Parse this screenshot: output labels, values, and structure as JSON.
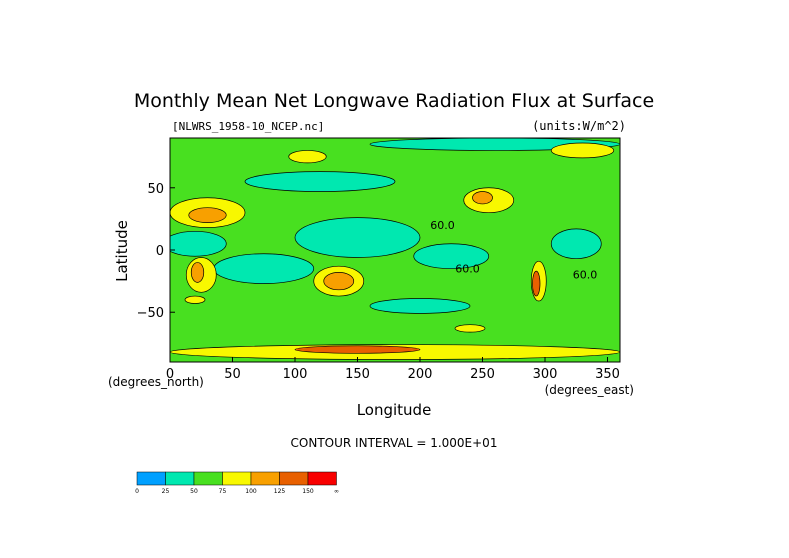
{
  "chart_data": {
    "type": "heatmap",
    "title": "Monthly Mean Net Longwave Radiation Flux at Surface",
    "subtitle_left": "[NLWRS_1958-10_NCEP.nc]",
    "subtitle_right": "(units:W/m^2)",
    "xlabel": "Longitude",
    "ylabel": "Latitude",
    "x_unit_label": "(degrees_east)",
    "y_unit_label": "(degrees_north)",
    "xlim": [
      0,
      360
    ],
    "ylim": [
      -90,
      90
    ],
    "x_ticks": [
      0,
      50,
      100,
      150,
      200,
      250,
      300,
      350
    ],
    "y_ticks": [
      50,
      0,
      -50
    ],
    "x_tick_labels": [
      "0",
      "50",
      "100",
      "150",
      "200",
      "250",
      "300",
      "350"
    ],
    "y_tick_labels": [
      "50",
      "0",
      "−50"
    ],
    "contour_interval_text": "CONTOUR INTERVAL = 1.000E+01",
    "contour_labels": [
      {
        "text": "60.0",
        "lon": 218,
        "lat": 17
      },
      {
        "text": "60.0",
        "lon": 238,
        "lat": -18
      },
      {
        "text": "60.0",
        "lon": 332,
        "lat": -23
      }
    ],
    "colorbar": {
      "labels": [
        "0",
        "25",
        "50",
        "75",
        "100",
        "125",
        "150",
        "∞"
      ],
      "colors": [
        "#00a0ff",
        "#00e8b0",
        "#48e020",
        "#f8f800",
        "#f8a000",
        "#e86000",
        "#f80000"
      ]
    },
    "background_color": "#48e020",
    "regions": [
      {
        "level": 1,
        "lon": 150,
        "lat": 10,
        "rlon": 50,
        "rlat": 16
      },
      {
        "level": 1,
        "lon": 225,
        "lat": -5,
        "rlon": 30,
        "rlat": 10
      },
      {
        "level": 1,
        "lon": 75,
        "lat": -15,
        "rlon": 40,
        "rlat": 12
      },
      {
        "level": 1,
        "lon": 20,
        "lat": 5,
        "rlon": 25,
        "rlat": 10
      },
      {
        "level": 1,
        "lon": 120,
        "lat": 55,
        "rlon": 60,
        "rlat": 8
      },
      {
        "level": 1,
        "lon": 260,
        "lat": 85,
        "rlon": 100,
        "rlat": 5
      },
      {
        "level": 1,
        "lon": 200,
        "lat": -45,
        "rlon": 40,
        "rlat": 6
      },
      {
        "level": 1,
        "lon": 325,
        "lat": 5,
        "rlon": 20,
        "rlat": 12
      },
      {
        "level": 3,
        "lon": 30,
        "lat": 30,
        "rlon": 30,
        "rlat": 12
      },
      {
        "level": 4,
        "lon": 30,
        "lat": 28,
        "rlon": 15,
        "rlat": 6
      },
      {
        "level": 3,
        "lon": 255,
        "lat": 40,
        "rlon": 20,
        "rlat": 10
      },
      {
        "level": 4,
        "lon": 250,
        "lat": 42,
        "rlon": 8,
        "rlat": 5
      },
      {
        "level": 3,
        "lon": 135,
        "lat": -25,
        "rlon": 20,
        "rlat": 12
      },
      {
        "level": 4,
        "lon": 135,
        "lat": -25,
        "rlon": 12,
        "rlat": 7
      },
      {
        "level": 3,
        "lon": 25,
        "lat": -20,
        "rlon": 12,
        "rlat": 14
      },
      {
        "level": 4,
        "lon": 22,
        "lat": -18,
        "rlon": 5,
        "rlat": 8
      },
      {
        "level": 3,
        "lon": 295,
        "lat": -25,
        "rlon": 6,
        "rlat": 16
      },
      {
        "level": 5,
        "lon": 293,
        "lat": -27,
        "rlon": 3,
        "rlat": 10
      },
      {
        "level": 3,
        "lon": 180,
        "lat": -82,
        "rlon": 180,
        "rlat": 6
      },
      {
        "level": 5,
        "lon": 150,
        "lat": -80,
        "rlon": 50,
        "rlat": 3
      },
      {
        "level": 3,
        "lon": 330,
        "lat": 80,
        "rlon": 25,
        "rlat": 6
      },
      {
        "level": 3,
        "lon": 110,
        "lat": 75,
        "rlon": 15,
        "rlat": 5
      },
      {
        "level": 3,
        "lon": 240,
        "lat": -63,
        "rlon": 12,
        "rlat": 3
      },
      {
        "level": 3,
        "lon": 20,
        "lat": -40,
        "rlon": 8,
        "rlat": 3
      }
    ]
  }
}
